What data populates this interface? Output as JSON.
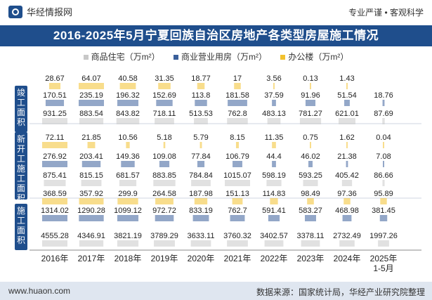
{
  "header": {
    "brand": "华经情报网",
    "tagline": "专业严谨 • 客观科学",
    "title": "2016-2025年5月宁夏回族自治区房地产各类型房屋施工情况"
  },
  "legend": [
    {
      "label": "商品住宅（万m²）",
      "color": "#c8c8c8"
    },
    {
      "label": "商业营业用房（万m²）",
      "color": "#3a5f9a"
    },
    {
      "label": "办公楼（万m²）",
      "color": "#f2c12e"
    }
  ],
  "side_labels": [
    {
      "label": "竣工面积"
    },
    {
      "label": "新开工施工面积"
    },
    {
      "label": "施工面积"
    }
  ],
  "footer": {
    "url": "www.huaon.com",
    "source": "数据来源：国家统计局，华经产业研究院整理"
  },
  "chart_data": {
    "type": "table",
    "categories": [
      "2016年",
      "2017年",
      "2018年",
      "2019年",
      "2020年",
      "2021年",
      "2022年",
      "2023年",
      "2024年",
      "2025年\n1-5月"
    ],
    "groups": [
      {
        "name": "竣工面积",
        "series": [
          {
            "name": "办公楼（万m²）",
            "values": [
              28.67,
              64.07,
              40.58,
              31.35,
              18.77,
              17,
              3.56,
              0.13,
              1.43,
              null
            ]
          },
          {
            "name": "商业营业用房（万m²）",
            "values": [
              170.51,
              235.19,
              196.32,
              152.69,
              113.8,
              181.58,
              37.59,
              91.96,
              51.54,
              18.76
            ]
          },
          {
            "name": "商品住宅（万m²）",
            "values": [
              931.25,
              883.54,
              843.82,
              718.11,
              513.53,
              762.8,
              483.13,
              781.27,
              621.01,
              87.69
            ]
          }
        ]
      },
      {
        "name": "新开工施工面积",
        "series": [
          {
            "name": "办公楼（万m²）",
            "values": [
              72.11,
              21.85,
              10.56,
              5.18,
              5.79,
              8.15,
              11.35,
              0.75,
              1.62,
              0.04
            ]
          },
          {
            "name": "商业营业用房（万m²）",
            "values": [
              276.92,
              203.41,
              149.36,
              109.08,
              77.84,
              106.79,
              44.4,
              46.02,
              21.38,
              7.08
            ]
          },
          {
            "name": "商品住宅（万m²）",
            "values": [
              875.41,
              815.15,
              681.57,
              883.85,
              784.84,
              1015.07,
              598.19,
              593.25,
              405.42,
              86.66
            ]
          }
        ]
      },
      {
        "name": "施工面积",
        "series": [
          {
            "name": "办公楼（万m²）",
            "values": [
              368.59,
              357.92,
              299.9,
              264.58,
              187.98,
              151.13,
              114.83,
              98.49,
              97.36,
              95.89
            ]
          },
          {
            "name": "商业营业用房（万m²）",
            "values": [
              1314.02,
              1290.28,
              1099.12,
              972.72,
              833.19,
              762.7,
              591.41,
              583.27,
              468.98,
              381.45
            ]
          },
          {
            "name": "商品住宅（万m²）",
            "values": [
              4555.28,
              4346.91,
              3821.19,
              3789.29,
              3633.11,
              3760.32,
              3402.57,
              3378.11,
              2732.49,
              1997.26
            ]
          }
        ]
      }
    ]
  }
}
